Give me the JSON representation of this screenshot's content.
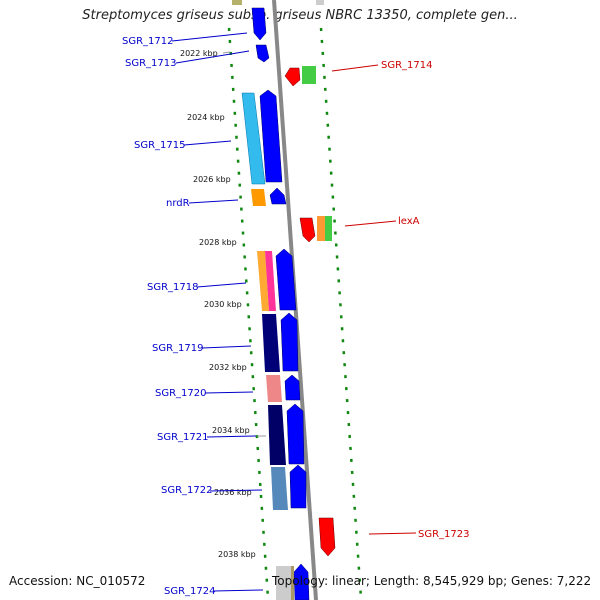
{
  "title": "Streptomyces griseus subsp. griseus NBRC 13350, complete gen...",
  "accession": "Accession: NC_010572",
  "topology": "Topology: linear; Length: 8,545,929 bp; Genes: 7,222",
  "kbp_ticks": [
    "2022 kbp",
    "2024 kbp",
    "2026 kbp",
    "2028 kbp",
    "2030 kbp",
    "2032 kbp",
    "2034 kbp",
    "2036 kbp",
    "2038 kbp"
  ],
  "left_genes": [
    "SGR_1712",
    "SGR_1713",
    "SGR_1715",
    "nrdR",
    "SGR_1718",
    "SGR_1719",
    "SGR_1720",
    "SGR_1721",
    "SGR_1722",
    "SGR_1724"
  ],
  "right_genes": [
    "SGR_1714",
    "lexA",
    "SGR_1723"
  ],
  "colors": {
    "left_label": "#0000cc",
    "right_label": "#cc0000",
    "backbone": "#888888",
    "dotted_track": "#118811",
    "forward_gene": "#0000ff",
    "reverse_gene": "#ff0000"
  }
}
